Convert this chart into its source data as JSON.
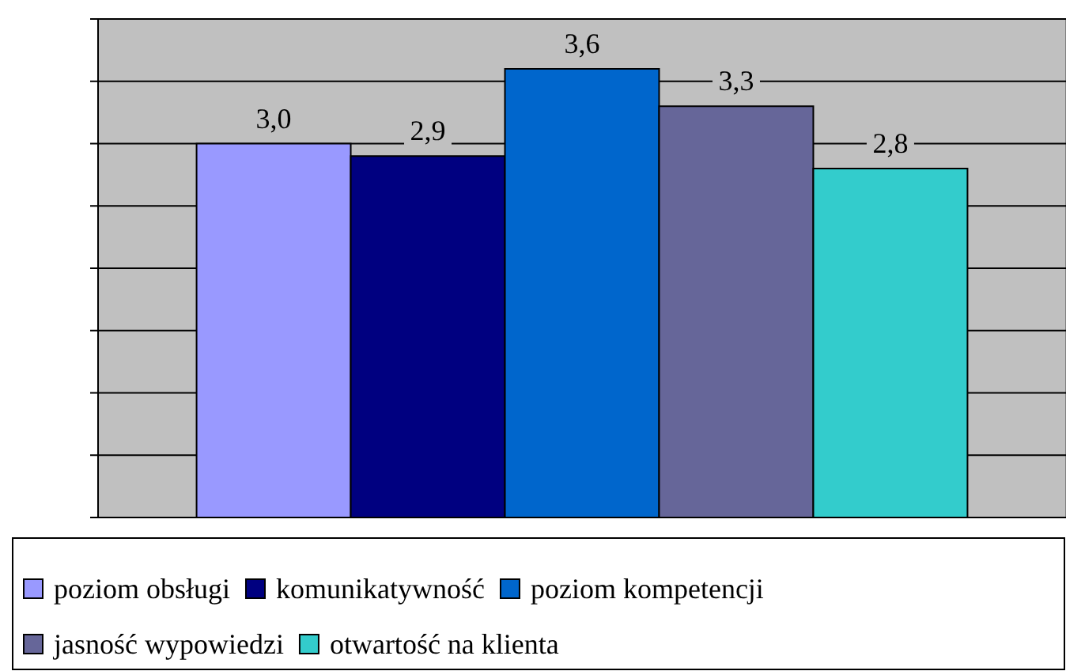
{
  "chart_data": {
    "type": "bar",
    "categories": [
      null
    ],
    "series": [
      {
        "name": "poziom obsługi",
        "color": "#9999ff",
        "values": [
          3.0
        ],
        "value_labels": [
          "3,0"
        ]
      },
      {
        "name": "komunikatywność",
        "color": "#000080",
        "values": [
          2.9
        ],
        "value_labels": [
          "2,9"
        ]
      },
      {
        "name": "poziom kompetencji",
        "color": "#0066cc",
        "values": [
          3.6
        ],
        "value_labels": [
          "3,6"
        ]
      },
      {
        "name": "jasność wypowiedzi",
        "color": "#666699",
        "values": [
          3.3
        ],
        "value_labels": [
          "3,3"
        ]
      },
      {
        "name": "otwartość na klienta",
        "color": "#33cccc",
        "values": [
          2.8
        ],
        "value_labels": [
          "2,8"
        ]
      }
    ],
    "ylim": [
      0,
      4
    ],
    "yticks": [
      {
        "value": 0,
        "label": null
      },
      {
        "value": 0.5,
        "label": null
      },
      {
        "value": 1,
        "label": null
      },
      {
        "value": 1.5,
        "label": null
      },
      {
        "value": 2,
        "label": null
      },
      {
        "value": 2.5,
        "label": null
      },
      {
        "value": 3,
        "label": null
      },
      {
        "value": 3.5,
        "label": null
      },
      {
        "value": 4,
        "label": null
      }
    ],
    "grid": "y",
    "legend": "bottom"
  }
}
